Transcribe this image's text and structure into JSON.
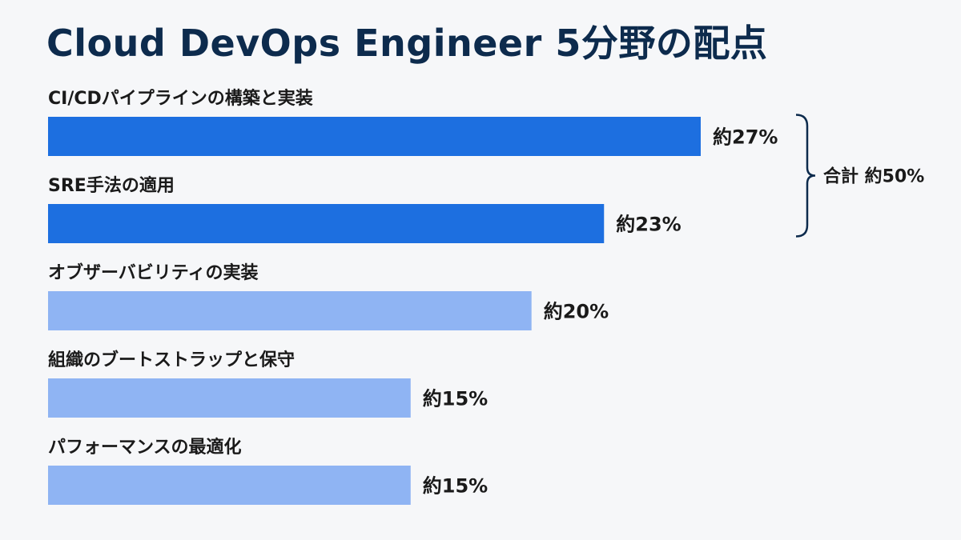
{
  "chart_data": {
    "type": "bar",
    "orientation": "horizontal",
    "title": "Cloud DevOps Engineer 5分野の配点",
    "xlabel": "",
    "ylabel": "",
    "xlim": [
      0,
      27
    ],
    "grid": false,
    "legend": "none",
    "categories": [
      "CI/CDパイプラインの構築と実装",
      "SRE手法の適用",
      "オブザーバビリティの実装",
      "組織のブートストラップと保守",
      "パフォーマンスの最適化"
    ],
    "values": [
      27,
      23,
      20,
      15,
      15
    ],
    "value_labels": [
      "約27%",
      "約23%",
      "約20%",
      "約15%",
      "約15%"
    ],
    "bar_colors": [
      "#1d6fe0",
      "#1d6fe0",
      "#8fb4f3",
      "#8fb4f3",
      "#8fb4f3"
    ],
    "annotation": {
      "text": "合計 約50%",
      "groups_categories": [
        0,
        1
      ]
    }
  }
}
